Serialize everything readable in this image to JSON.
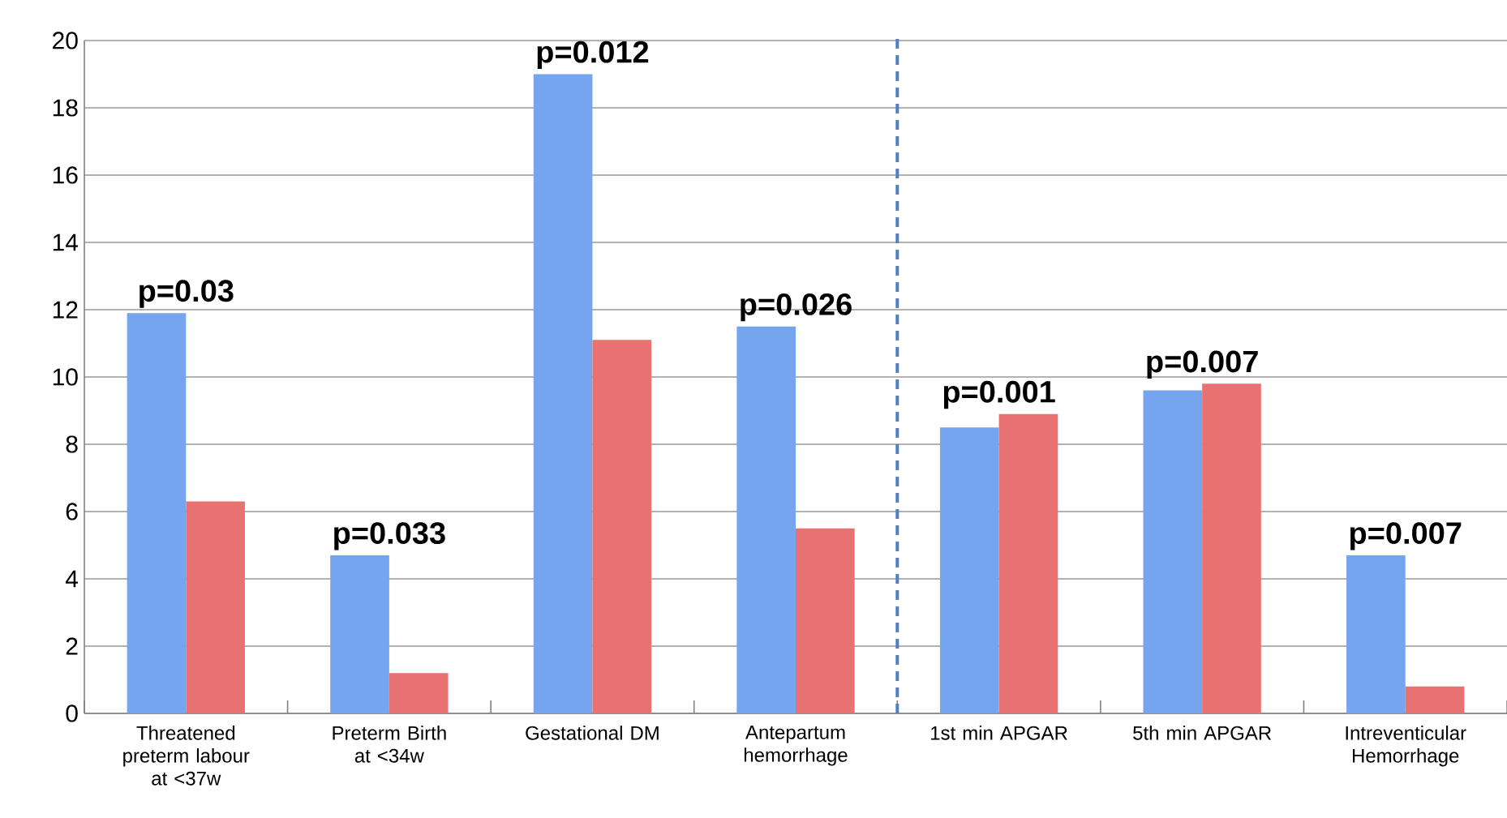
{
  "chart_data": {
    "type": "bar",
    "categories": [
      "Threatened preterm labour at <37w",
      "Preterm Birth at <34w",
      "Gestational DM",
      "Antepartum hemorrhage",
      "1st min APGAR",
      "5th min APGAR",
      "Intreventicular Hemorrhage"
    ],
    "series": [
      {
        "color": "#76a5ef",
        "values": [
          11.9,
          4.7,
          19.0,
          11.5,
          8.5,
          9.6,
          4.7
        ]
      },
      {
        "color": "#e87272",
        "values": [
          6.3,
          1.2,
          11.1,
          5.5,
          8.9,
          9.8,
          0.8
        ]
      }
    ],
    "ylim": [
      0,
      20
    ],
    "yticks": [
      0,
      2,
      4,
      6,
      8,
      10,
      12,
      14,
      16,
      18,
      20
    ],
    "grid": "y",
    "annotations": [
      {
        "text": "p=0.03",
        "x": "Threatened preterm labour at <37w",
        "y": 11.9
      },
      {
        "text": "p=0.033",
        "x": "Preterm Birth at <34w",
        "y": 4.7
      },
      {
        "text": "p=0.012",
        "x": "Gestational DM",
        "y": 19.0
      },
      {
        "text": "p=0.026",
        "x": "Antepartum hemorrhage",
        "y": 11.5
      },
      {
        "text": "p=0.001",
        "x": "1st min APGAR",
        "y": 8.9
      },
      {
        "text": "p=0.007",
        "x": "5th min APGAR",
        "y": 9.8
      },
      {
        "text": "p=0.007",
        "x": "Intreventicular Hemorrhage",
        "y": 4.7
      }
    ]
  }
}
